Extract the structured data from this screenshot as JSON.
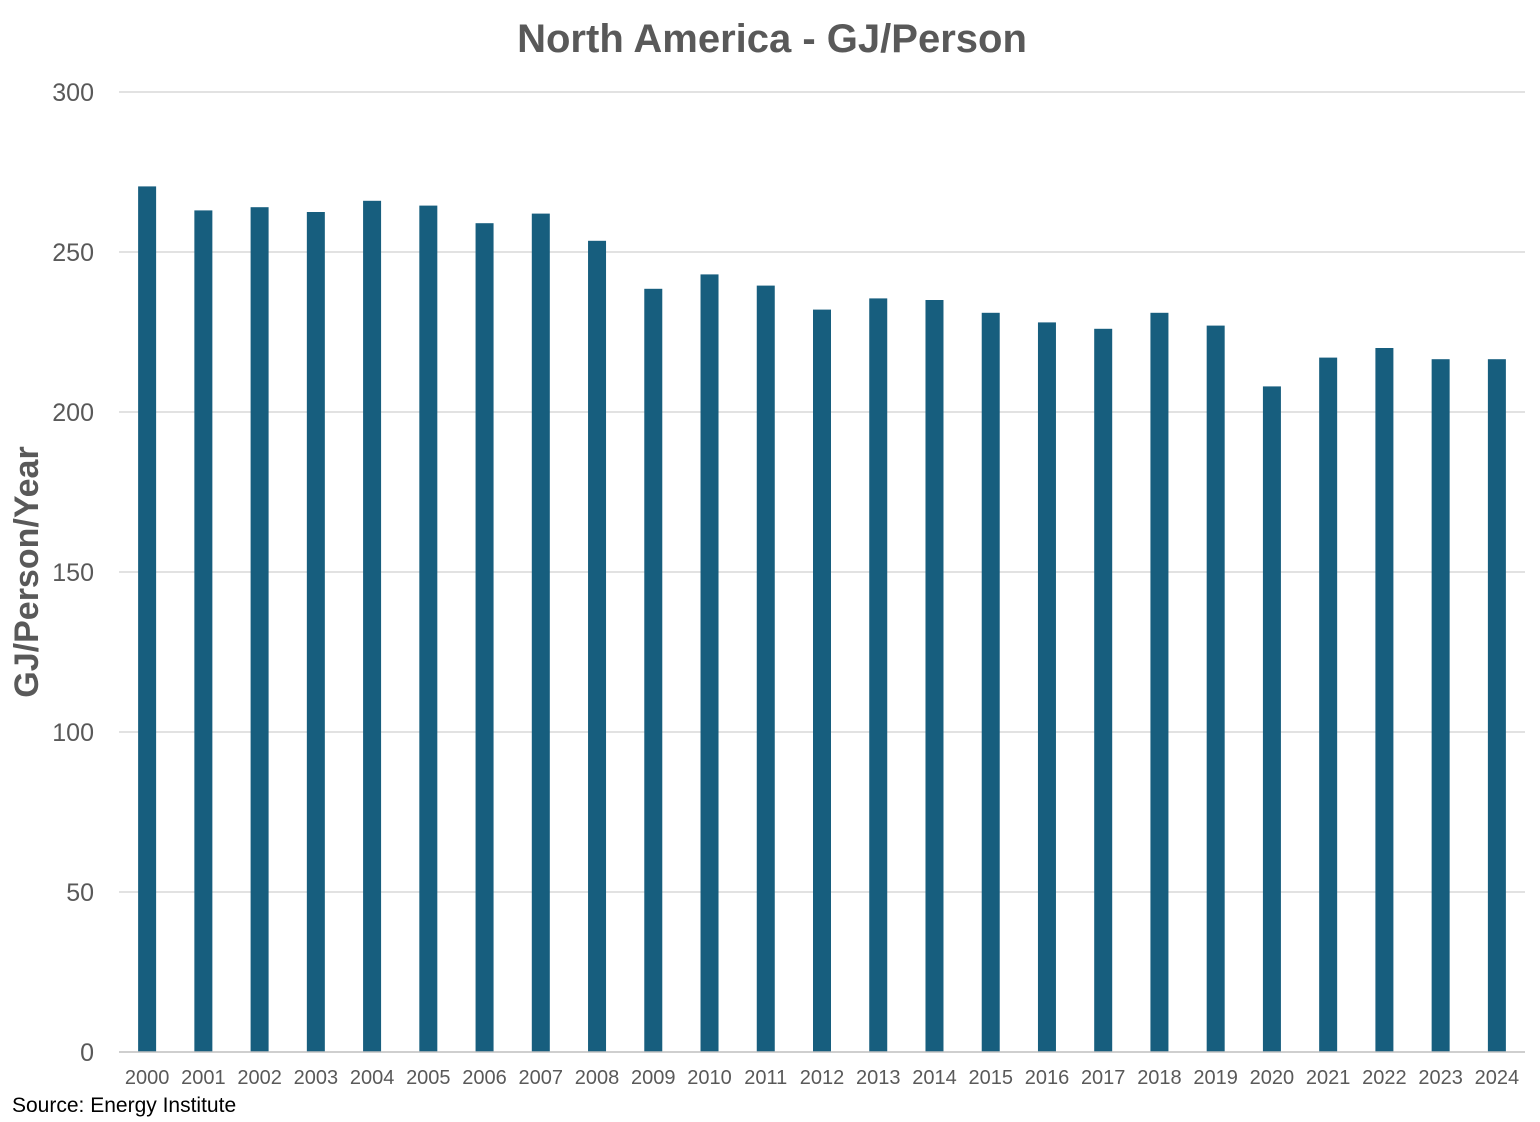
{
  "chart_data": {
    "type": "bar",
    "title": "North America - GJ/Person",
    "xlabel": "",
    "ylabel": "GJ/Person/Year",
    "ylim": [
      0,
      300
    ],
    "y_ticks": [
      "0",
      "50",
      "100",
      "150",
      "200",
      "250",
      "300"
    ],
    "grid": true,
    "legend": "none",
    "categories": [
      "2000",
      "2001",
      "2002",
      "2003",
      "2004",
      "2005",
      "2006",
      "2007",
      "2008",
      "2009",
      "2010",
      "2011",
      "2012",
      "2013",
      "2014",
      "2015",
      "2016",
      "2017",
      "2018",
      "2019",
      "2020",
      "2021",
      "2022",
      "2023",
      "2024"
    ],
    "series": [
      {
        "name": "GJ/Person",
        "values": [
          270.5,
          263.0,
          264.0,
          262.5,
          266.0,
          264.5,
          259.0,
          262.0,
          253.5,
          238.5,
          243.0,
          239.5,
          232.0,
          235.5,
          235.0,
          231.0,
          228.0,
          226.0,
          231.0,
          227.0,
          208.0,
          217.0,
          220.0,
          216.5,
          216.5
        ]
      }
    ]
  },
  "source": "Source: Energy Institute",
  "colors": {
    "bar": "#175E7E",
    "grid": "#D9D9D9",
    "axis": "#BFBFBF",
    "text": "#595959"
  }
}
